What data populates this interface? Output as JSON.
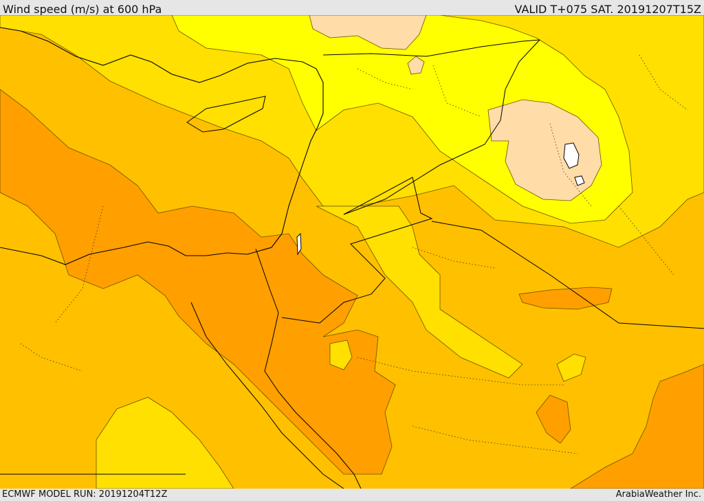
{
  "header": {
    "title": "Wind speed (m/s) at 600 hPa",
    "valid": "VALID T+075 SAT. 20191207T15Z"
  },
  "footer": {
    "model_run": "ECMWF MODEL RUN: 20191204T12Z",
    "credit": "ArabiaWeather Inc."
  },
  "colors": {
    "base": "#ffc000",
    "light_yellow_band": "#ffe000",
    "bright_yellow": "#ffff00",
    "pale_calm": "#ffdca8",
    "strong_orange": "#ff9f00",
    "coast": "#000000",
    "contour": "#6b5200"
  }
}
